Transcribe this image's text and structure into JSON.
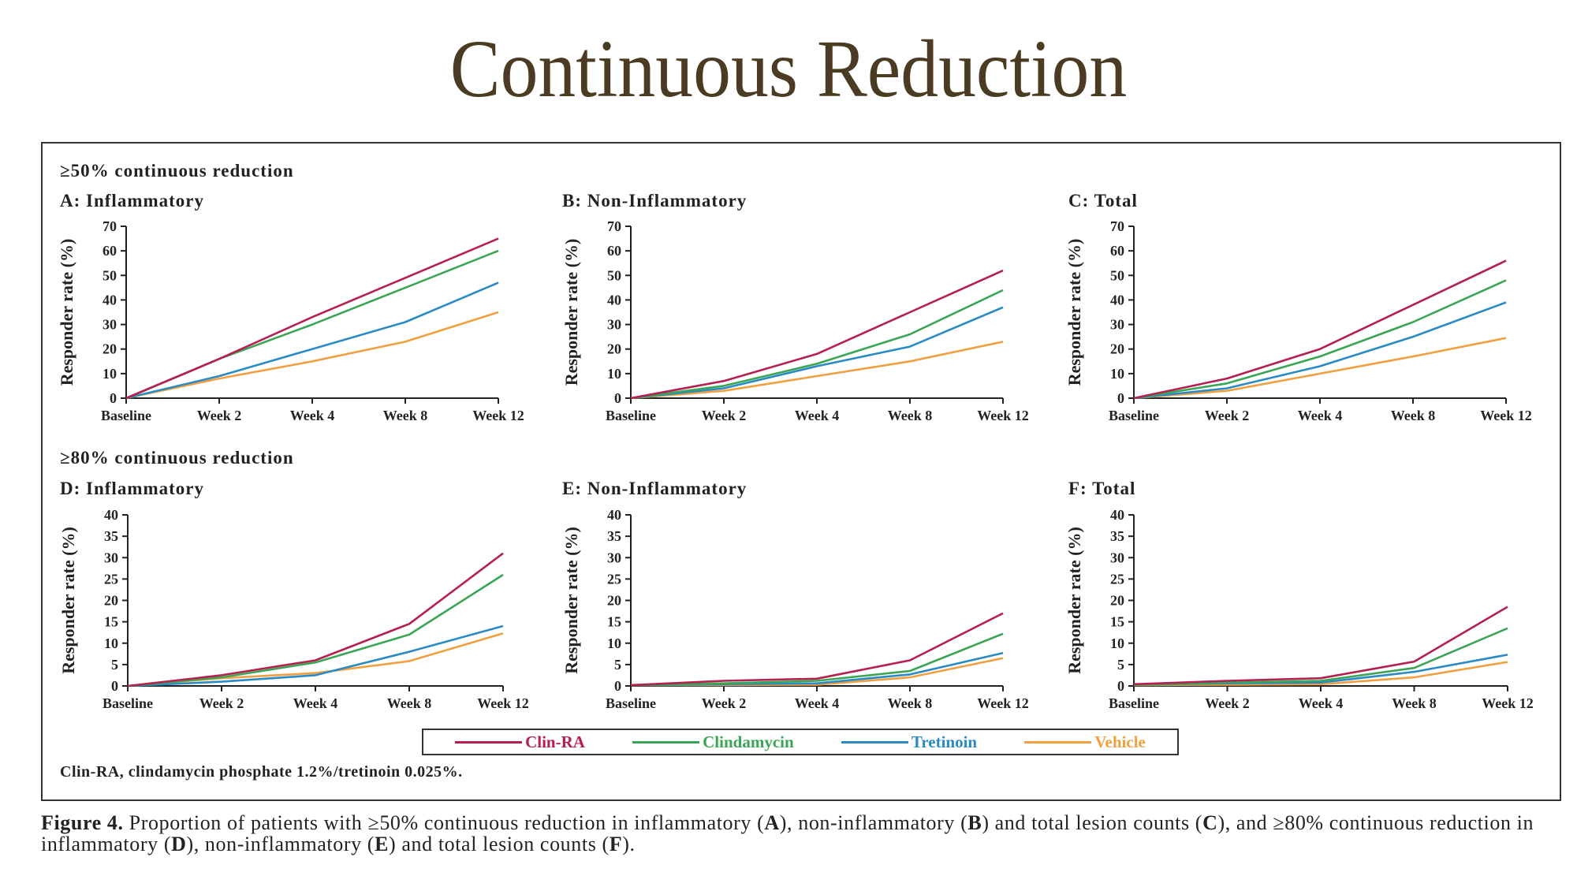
{
  "slide": {
    "title": "Continuous Reduction"
  },
  "figure": {
    "section_headings": [
      "≥50% continuous reduction",
      "≥80% continuous reduction"
    ],
    "footnote": "Clin-RA, clindamycin phosphate 1.2%/tretinoin 0.025%.",
    "caption_parts": {
      "label": "Figure 4.",
      "line1": " Proportion of patients with ≥50% continuous reduction in inflammatory (",
      "A": "A",
      "mid1": "), non-inflammatory (",
      "B": "B",
      "mid2": ") and total lesion counts (",
      "C": "C",
      "mid3": "), and ≥80% continuous reduction in inflammatory (",
      "D": "D",
      "mid4": "), non-inflammatory (",
      "E": "E",
      "mid5": ") and total lesion counts (",
      "F": "F",
      "end": ")."
    }
  },
  "legend": [
    {
      "name": "Clin-RA",
      "color": "#b5204f"
    },
    {
      "name": "Clindamycin",
      "color": "#3aa655"
    },
    {
      "name": "Tretinoin",
      "color": "#2a8bc4"
    },
    {
      "name": "Vehicle",
      "color": "#f0a040"
    }
  ],
  "chart_data": [
    {
      "type": "line",
      "panel": "A",
      "title_letter": "A:",
      "title": "Inflammatory",
      "ylabel": "Responder rate (%)",
      "xlabel": "",
      "categories": [
        "Baseline",
        "Week 2",
        "Week 4",
        "Week 8",
        "Week 12"
      ],
      "ylim": [
        0,
        70
      ],
      "yticks": [
        0,
        10,
        20,
        30,
        40,
        50,
        60,
        70
      ],
      "grid": false,
      "series": [
        {
          "name": "Clin-RA",
          "values": [
            0,
            16,
            33,
            49,
            65
          ]
        },
        {
          "name": "Clindamycin",
          "values": [
            0,
            16,
            30,
            45,
            60
          ]
        },
        {
          "name": "Tretinoin",
          "values": [
            0,
            9,
            20,
            31,
            47
          ]
        },
        {
          "name": "Vehicle",
          "values": [
            0,
            8,
            15,
            23,
            35
          ]
        }
      ]
    },
    {
      "type": "line",
      "panel": "B",
      "title_letter": "B:",
      "title": "Non-Inflammatory",
      "ylabel": "Responder rate (%)",
      "xlabel": "",
      "categories": [
        "Baseline",
        "Week 2",
        "Week 4",
        "Week 8",
        "Week 12"
      ],
      "ylim": [
        0,
        70
      ],
      "yticks": [
        0,
        10,
        20,
        30,
        40,
        50,
        60,
        70
      ],
      "grid": false,
      "series": [
        {
          "name": "Clin-RA",
          "values": [
            0,
            7,
            18,
            35,
            52
          ]
        },
        {
          "name": "Clindamycin",
          "values": [
            0,
            5,
            14,
            26,
            44
          ]
        },
        {
          "name": "Tretinoin",
          "values": [
            0,
            4,
            13,
            21,
            37
          ]
        },
        {
          "name": "Vehicle",
          "values": [
            0,
            3,
            9,
            15,
            23
          ]
        }
      ]
    },
    {
      "type": "line",
      "panel": "C",
      "title_letter": "C:",
      "title": "Total",
      "ylabel": "Responder rate (%)",
      "xlabel": "",
      "categories": [
        "Baseline",
        "Week 2",
        "Week 4",
        "Week 8",
        "Week 12"
      ],
      "ylim": [
        0,
        70
      ],
      "yticks": [
        0,
        10,
        20,
        30,
        40,
        50,
        60,
        70
      ],
      "grid": false,
      "series": [
        {
          "name": "Clin-RA",
          "values": [
            0,
            8,
            20,
            38,
            56
          ]
        },
        {
          "name": "Clindamycin",
          "values": [
            0,
            6,
            17,
            31,
            48
          ]
        },
        {
          "name": "Tretinoin",
          "values": [
            0,
            4,
            13,
            25,
            39
          ]
        },
        {
          "name": "Vehicle",
          "values": [
            0,
            3,
            10,
            17,
            24.5
          ]
        }
      ]
    },
    {
      "type": "line",
      "panel": "D",
      "title_letter": "D:",
      "title": "Inflammatory",
      "ylabel": "Responder rate (%)",
      "xlabel": "",
      "categories": [
        "Baseline",
        "Week 2",
        "Week 4",
        "Week 8",
        "Week 12"
      ],
      "ylim": [
        0,
        40
      ],
      "yticks": [
        0,
        5,
        10,
        15,
        20,
        25,
        30,
        35,
        40
      ],
      "grid": false,
      "series": [
        {
          "name": "Clin-RA",
          "values": [
            0,
            2.5,
            6,
            14.5,
            31
          ]
        },
        {
          "name": "Clindamycin",
          "values": [
            0,
            2,
            5.5,
            12,
            26
          ]
        },
        {
          "name": "Tretinoin",
          "values": [
            0,
            1,
            2.5,
            8,
            14
          ]
        },
        {
          "name": "Vehicle",
          "values": [
            0,
            1.8,
            3,
            5.8,
            12.3
          ]
        }
      ]
    },
    {
      "type": "line",
      "panel": "E",
      "title_letter": "E:",
      "title": "Non-Inflammatory",
      "ylabel": "Responder rate (%)",
      "xlabel": "",
      "categories": [
        "Baseline",
        "Week 2",
        "Week 4",
        "Week 8",
        "Week 12"
      ],
      "ylim": [
        0,
        40
      ],
      "yticks": [
        0,
        5,
        10,
        15,
        20,
        25,
        30,
        35,
        40
      ],
      "grid": false,
      "series": [
        {
          "name": "Clin-RA",
          "values": [
            0.2,
            1.2,
            1.7,
            6,
            17
          ]
        },
        {
          "name": "Clindamycin",
          "values": [
            0.2,
            0.6,
            1.2,
            3.5,
            12.2
          ]
        },
        {
          "name": "Tretinoin",
          "values": [
            0.2,
            0.4,
            0.6,
            2.7,
            7.7
          ]
        },
        {
          "name": "Vehicle",
          "values": [
            0.2,
            0.2,
            0.3,
            2,
            6.5
          ]
        }
      ]
    },
    {
      "type": "line",
      "panel": "F",
      "title_letter": "F:",
      "title": "Total",
      "ylabel": "Responder rate (%)",
      "xlabel": "",
      "categories": [
        "Baseline",
        "Week 2",
        "Week 4",
        "Week 8",
        "Week 12"
      ],
      "ylim": [
        0,
        40
      ],
      "yticks": [
        0,
        5,
        10,
        15,
        20,
        25,
        30,
        35,
        40
      ],
      "grid": false,
      "series": [
        {
          "name": "Clin-RA",
          "values": [
            0.4,
            1.2,
            1.8,
            5.7,
            18.5
          ]
        },
        {
          "name": "Clindamycin",
          "values": [
            0.3,
            0.8,
            1.2,
            4.2,
            13.5
          ]
        },
        {
          "name": "Tretinoin",
          "values": [
            0.3,
            0.6,
            0.8,
            3.3,
            7.3
          ]
        },
        {
          "name": "Vehicle",
          "values": [
            0.2,
            0.3,
            0.4,
            2,
            5.6
          ]
        }
      ]
    }
  ]
}
